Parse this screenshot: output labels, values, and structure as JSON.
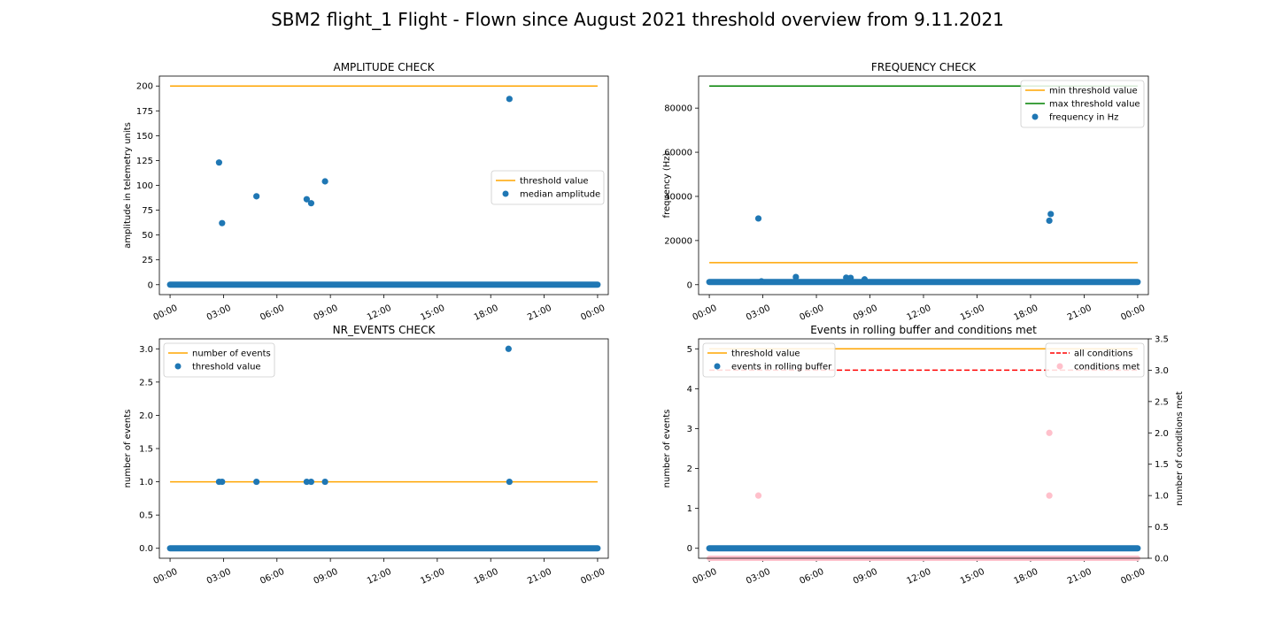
{
  "suptitle": "SBM2 flight_1 Flight - Flown since August 2021 threshold overview from 9.11.2021",
  "colors": {
    "blue": "#1f77b4",
    "orange": "#ffa500",
    "green": "#008000",
    "red": "#ff0000",
    "pink": "#ffc0cb"
  },
  "chart_data": [
    {
      "type": "scatter",
      "title": "AMPLITUDE CHECK",
      "xlabel": "",
      "ylabel": "amplitude in telemetry units",
      "xlim": [
        -0.6,
        24.6
      ],
      "ylim": [
        -10,
        210
      ],
      "xticks": [
        "00:00",
        "03:00",
        "06:00",
        "09:00",
        "12:00",
        "15:00",
        "18:00",
        "21:00",
        "00:00"
      ],
      "yticks": [
        0,
        25,
        50,
        75,
        100,
        125,
        150,
        175,
        200
      ],
      "ytick_labels": [
        "0",
        "25",
        "50",
        "75",
        "100",
        "125",
        "150",
        "175",
        "200"
      ],
      "legend": {
        "placement": "center-right",
        "entries": [
          {
            "label": "threshold value",
            "kind": "line",
            "color": "#ffa500"
          },
          {
            "label": "median amplitude",
            "kind": "dot",
            "color": "#1f77b4"
          }
        ]
      },
      "lines": [
        {
          "name": "threshold value",
          "x": [
            0,
            24
          ],
          "y": [
            200,
            200
          ],
          "color": "#ffa500",
          "dash": false
        }
      ],
      "baseline": {
        "y": 0,
        "x": [
          0,
          24
        ],
        "color": "#1f77b4"
      },
      "points": [
        {
          "x": 2.75,
          "y": 123
        },
        {
          "x": 2.92,
          "y": 62
        },
        {
          "x": 4.85,
          "y": 89
        },
        {
          "x": 7.67,
          "y": 86
        },
        {
          "x": 7.92,
          "y": 82
        },
        {
          "x": 8.7,
          "y": 104
        },
        {
          "x": 19.05,
          "y": 187
        }
      ],
      "point_color": "#1f77b4"
    },
    {
      "type": "scatter",
      "title": "FREQUENCY CHECK",
      "xlabel": "",
      "ylabel": "frequency (Hz)",
      "xlim": [
        -0.6,
        24.6
      ],
      "ylim": [
        -4500,
        94500
      ],
      "xticks": [
        "00:00",
        "03:00",
        "06:00",
        "09:00",
        "12:00",
        "15:00",
        "18:00",
        "21:00",
        "00:00"
      ],
      "yticks": [
        0,
        20000,
        40000,
        60000,
        80000
      ],
      "ytick_labels": [
        "0",
        "20000",
        "40000",
        "60000",
        "80000"
      ],
      "legend": {
        "placement": "top-right",
        "entries": [
          {
            "label": "min threshold value",
            "kind": "line",
            "color": "#ffa500"
          },
          {
            "label": "max threshold value",
            "kind": "line",
            "color": "#008000"
          },
          {
            "label": "frequency in Hz",
            "kind": "dot",
            "color": "#1f77b4"
          }
        ]
      },
      "lines": [
        {
          "name": "min threshold value",
          "x": [
            0,
            24
          ],
          "y": [
            10000,
            10000
          ],
          "color": "#ffa500",
          "dash": false
        },
        {
          "name": "max threshold value",
          "x": [
            0,
            24
          ],
          "y": [
            90000,
            90000
          ],
          "color": "#008000",
          "dash": false
        }
      ],
      "baseline": {
        "y": 1200,
        "x": [
          0,
          24
        ],
        "color": "#1f77b4"
      },
      "points": [
        {
          "x": 2.75,
          "y": 30000
        },
        {
          "x": 2.92,
          "y": 1500
        },
        {
          "x": 4.85,
          "y": 3500
        },
        {
          "x": 7.67,
          "y": 3200
        },
        {
          "x": 7.92,
          "y": 3100
        },
        {
          "x": 8.7,
          "y": 2400
        },
        {
          "x": 19.05,
          "y": 29000
        },
        {
          "x": 19.13,
          "y": 32000
        }
      ],
      "point_color": "#1f77b4"
    },
    {
      "type": "scatter",
      "title": "NR_EVENTS CHECK",
      "xlabel": "",
      "ylabel": "number of events",
      "xlim": [
        -0.6,
        24.6
      ],
      "ylim": [
        -0.15,
        3.15
      ],
      "xticks": [
        "00:00",
        "03:00",
        "06:00",
        "09:00",
        "12:00",
        "15:00",
        "18:00",
        "21:00",
        "00:00"
      ],
      "yticks": [
        0,
        0.5,
        1,
        1.5,
        2,
        2.5,
        3
      ],
      "ytick_labels": [
        "0.0",
        "0.5",
        "1.0",
        "1.5",
        "2.0",
        "2.5",
        "3.0"
      ],
      "legend": {
        "placement": "top-left",
        "entries": [
          {
            "label": "number of events",
            "kind": "line",
            "color": "#ffa500"
          },
          {
            "label": "threshold value",
            "kind": "dot",
            "color": "#1f77b4"
          }
        ]
      },
      "lines": [
        {
          "name": "number of events",
          "x": [
            0,
            24
          ],
          "y": [
            1,
            1
          ],
          "color": "#ffa500",
          "dash": false
        }
      ],
      "baseline": {
        "y": 0,
        "x": [
          0,
          24
        ],
        "color": "#1f77b4"
      },
      "points": [
        {
          "x": 2.75,
          "y": 1
        },
        {
          "x": 2.92,
          "y": 1
        },
        {
          "x": 4.85,
          "y": 1
        },
        {
          "x": 7.67,
          "y": 1
        },
        {
          "x": 7.92,
          "y": 1
        },
        {
          "x": 8.7,
          "y": 1
        },
        {
          "x": 19.05,
          "y": 1
        },
        {
          "x": 19.0,
          "y": 3
        }
      ],
      "point_color": "#1f77b4"
    },
    {
      "type": "scatter",
      "title": "Events in rolling buffer and conditions met",
      "xlabel": "",
      "ylabel": "number of events",
      "ylabel_right": "number of conditions met",
      "xlim": [
        -0.6,
        24.6
      ],
      "ylim": [
        -0.25,
        5.25
      ],
      "ylim_right": [
        0,
        3.5
      ],
      "xticks": [
        "00:00",
        "03:00",
        "06:00",
        "09:00",
        "12:00",
        "15:00",
        "18:00",
        "21:00",
        "00:00"
      ],
      "yticks": [
        0,
        1,
        2,
        3,
        4,
        5
      ],
      "ytick_labels": [
        "0",
        "1",
        "2",
        "3",
        "4",
        "5"
      ],
      "yticks_right": [
        0,
        0.5,
        1,
        1.5,
        2,
        2.5,
        3,
        3.5
      ],
      "ytick_labels_right": [
        "0.0",
        "0.5",
        "1.0",
        "1.5",
        "2.0",
        "2.5",
        "3.0",
        "3.5"
      ],
      "legend": {
        "placement": "top-left",
        "entries": [
          {
            "label": "threshold value",
            "kind": "line",
            "color": "#ffa500"
          },
          {
            "label": "events in rolling buffer",
            "kind": "dot",
            "color": "#1f77b4"
          }
        ]
      },
      "legend_right": {
        "placement": "top-right",
        "entries": [
          {
            "label": "all conditions",
            "kind": "dash",
            "color": "#ff0000"
          },
          {
            "label": "conditions met",
            "kind": "dot",
            "color": "#ffc0cb"
          }
        ]
      },
      "lines": [
        {
          "name": "threshold value",
          "x": [
            0,
            24
          ],
          "y": [
            5,
            5
          ],
          "color": "#ffa500",
          "dash": false
        }
      ],
      "lines_right": [
        {
          "name": "all conditions",
          "x": [
            0,
            24
          ],
          "y": [
            3,
            3
          ],
          "color": "#ff0000",
          "dash": true
        }
      ],
      "baseline": {
        "y": 0,
        "x": [
          0,
          24
        ],
        "color": "#1f77b4"
      },
      "baseline_right": {
        "y": 0,
        "x": [
          0,
          24
        ],
        "color": "#ffc0cb"
      },
      "points": [],
      "point_color": "#1f77b4",
      "points_right": [
        {
          "x": 2.75,
          "y": 1
        },
        {
          "x": 19.05,
          "y": 2
        },
        {
          "x": 19.05,
          "y": 1
        }
      ],
      "point_color_right": "#ffc0cb"
    }
  ]
}
